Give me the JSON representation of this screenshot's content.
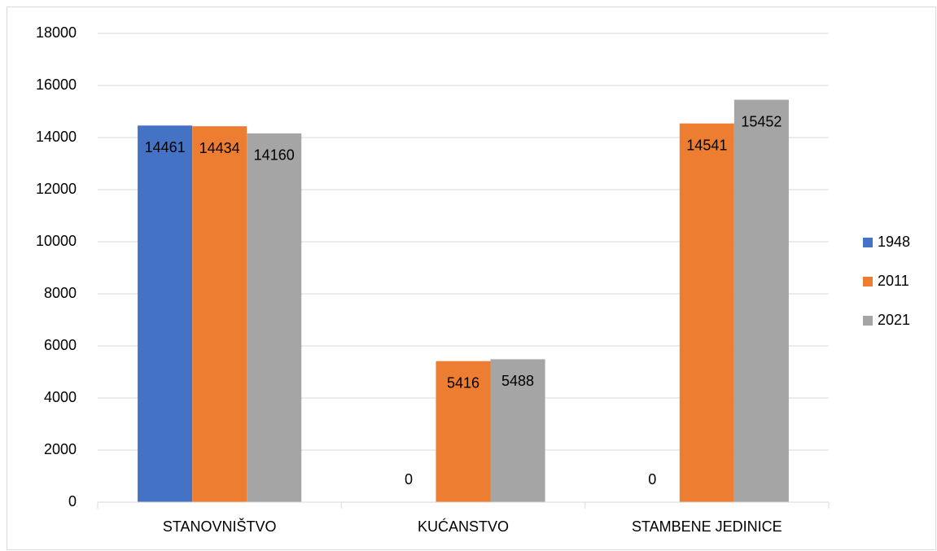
{
  "chart_data": {
    "type": "bar",
    "categories": [
      "STANOVNIŠTVO",
      "KUĆANSTVO",
      "STAMBENE JEDINICE"
    ],
    "series": [
      {
        "name": "1948",
        "color": "#4472c4",
        "values": [
          14461,
          0,
          0
        ]
      },
      {
        "name": "2011",
        "color": "#ed7d31",
        "values": [
          14434,
          5416,
          14541
        ]
      },
      {
        "name": "2021",
        "color": "#a5a5a5",
        "values": [
          14160,
          5488,
          15452
        ]
      }
    ],
    "ylim": [
      0,
      18000
    ],
    "yticks": [
      0,
      2000,
      4000,
      6000,
      8000,
      10000,
      12000,
      14000,
      16000,
      18000
    ],
    "grid": true,
    "legend": "right"
  }
}
